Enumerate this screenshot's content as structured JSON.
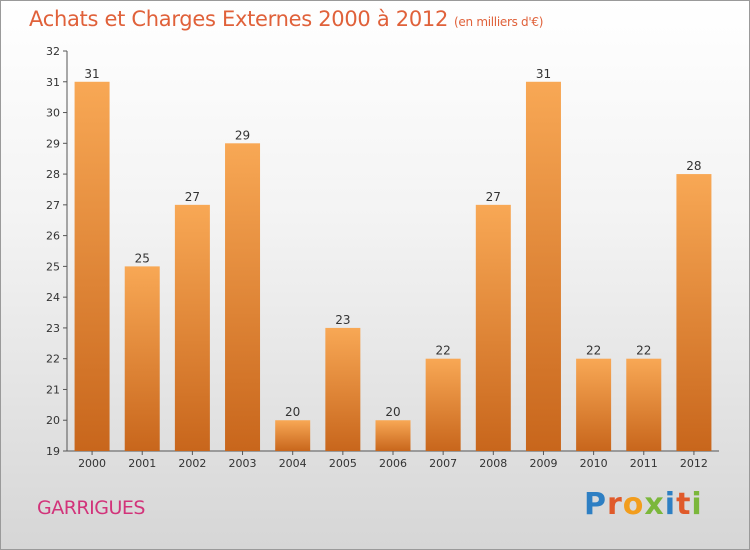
{
  "title": "Achats et Charges Externes 2000 à 2012",
  "title_unit": "(en milliers d'€)",
  "commune": "GARRIGUES",
  "logo_text": "Proxiti",
  "colors": {
    "title": "#e0613a",
    "commune": "#d2337a",
    "bar_top": "#f8a855",
    "bar_bottom": "#c8661c",
    "logo": [
      "#2e7fc3",
      "#e05a2a",
      "#f29d1d",
      "#7bb73b",
      "#2e7fc3",
      "#e05a2a",
      "#7bb73b"
    ]
  },
  "chart_data": {
    "type": "bar",
    "categories": [
      "2000",
      "2001",
      "2002",
      "2003",
      "2004",
      "2005",
      "2006",
      "2007",
      "2008",
      "2009",
      "2010",
      "2011",
      "2012"
    ],
    "values": [
      31,
      25,
      27,
      29,
      20,
      23,
      20,
      22,
      27,
      31,
      22,
      22,
      28
    ],
    "ylim": [
      19,
      32
    ],
    "yticks": [
      19,
      20,
      21,
      22,
      23,
      24,
      25,
      26,
      27,
      28,
      29,
      30,
      31,
      32
    ],
    "grid": false,
    "legend": "none"
  }
}
